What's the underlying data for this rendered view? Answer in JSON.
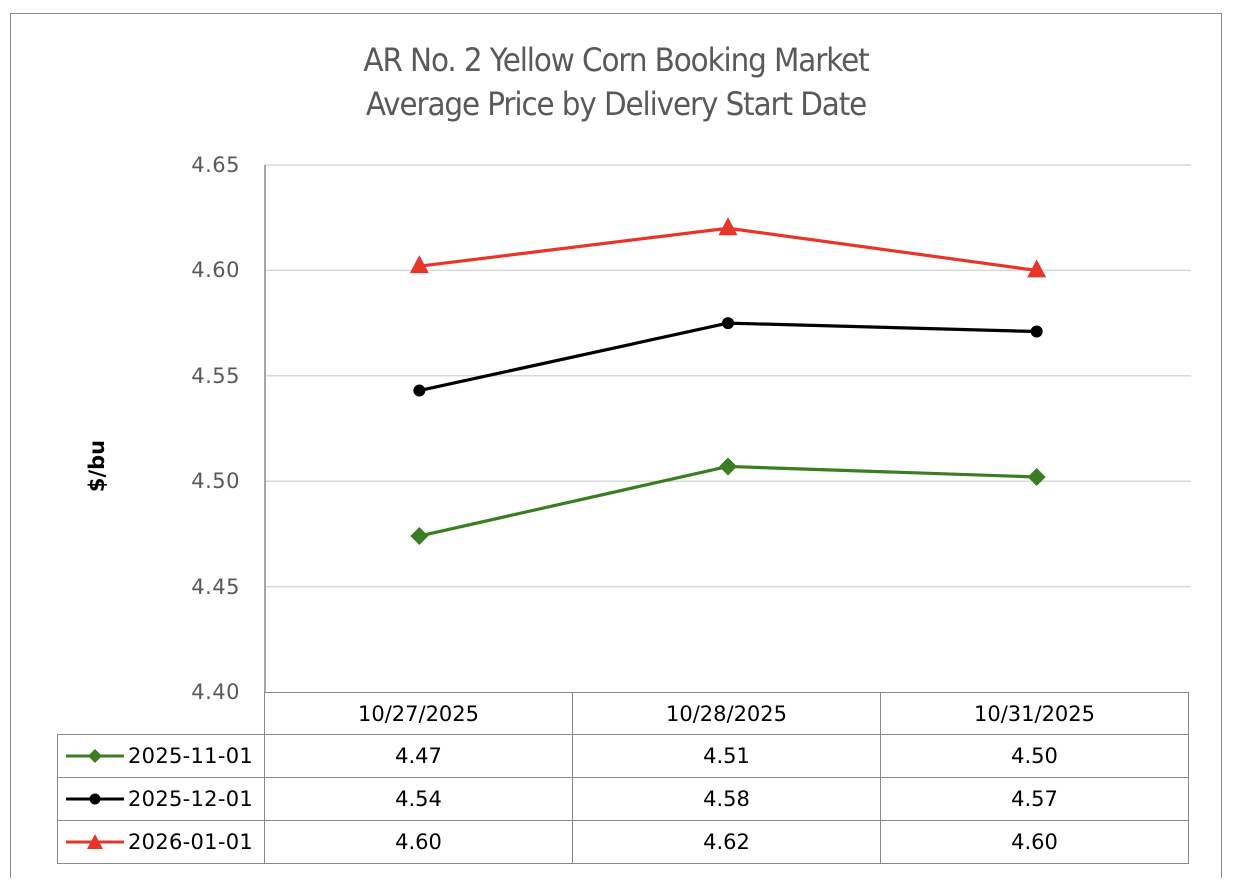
{
  "chart_data": {
    "type": "line",
    "title": "AR No. 2 Yellow Corn Booking Market",
    "subtitle": "Average Price by Delivery Start Date",
    "xlabel": "",
    "ylabel": "$/bu",
    "ylim": [
      4.4,
      4.65
    ],
    "yticks": [
      "4.65",
      "4.60",
      "4.55",
      "4.50",
      "4.45",
      "4.40"
    ],
    "grid": true,
    "legend_position": "data-table",
    "categories": [
      "10/27/2025",
      "10/28/2025",
      "10/31/2025"
    ],
    "series": [
      {
        "name": "2025-11-01",
        "color": "#3A7D22",
        "marker": "diamond",
        "values": [
          4.474,
          4.507,
          4.502
        ],
        "labels": [
          "4.47",
          "4.51",
          "4.50"
        ]
      },
      {
        "name": "2025-12-01",
        "color": "#000000",
        "marker": "circle",
        "values": [
          4.543,
          4.575,
          4.571
        ],
        "labels": [
          "4.54",
          "4.58",
          "4.57"
        ]
      },
      {
        "name": "2026-01-01",
        "color": "#E8352A",
        "marker": "triangle",
        "values": [
          4.602,
          4.62,
          4.6
        ],
        "labels": [
          "4.60",
          "4.62",
          "4.60"
        ]
      }
    ]
  },
  "colors": {
    "gridline": "#D9D9D9",
    "axis_text": "#595959",
    "border": "#8A8A8A"
  }
}
